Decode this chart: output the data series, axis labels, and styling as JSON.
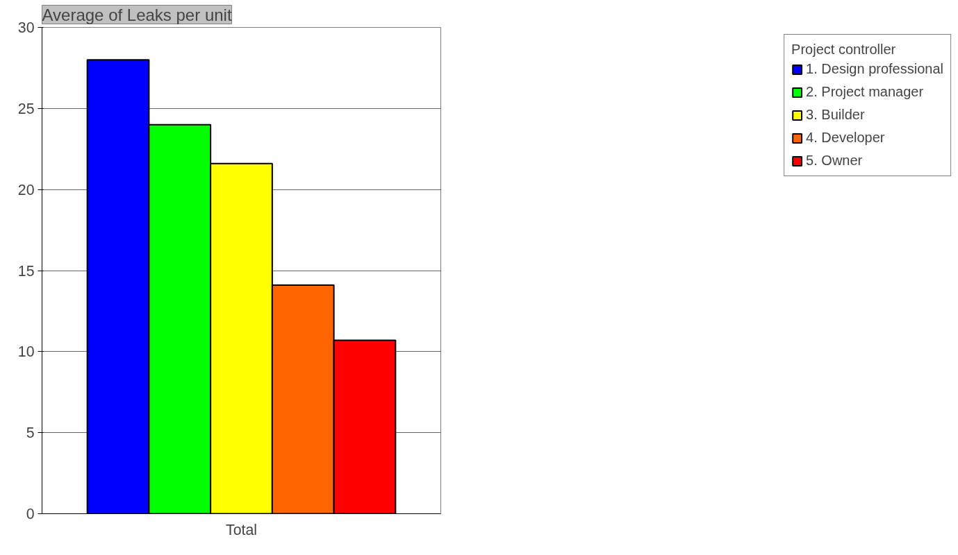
{
  "chart_data": {
    "type": "bar",
    "title": "Average of Leaks per unit",
    "categories": [
      "Total"
    ],
    "series": [
      {
        "name": "1. Design professional",
        "color": "#0000ff",
        "values": [
          28.0
        ]
      },
      {
        "name": "2. Project manager",
        "color": "#00ff00",
        "values": [
          24.0
        ]
      },
      {
        "name": "3. Builder",
        "color": "#ffff00",
        "values": [
          21.6
        ]
      },
      {
        "name": "4. Developer",
        "color": "#ff6600",
        "values": [
          14.1
        ]
      },
      {
        "name": "5. Owner",
        "color": "#ff0000",
        "values": [
          10.7
        ]
      }
    ],
    "ylim": [
      0,
      30
    ],
    "yticks": [
      0,
      5,
      10,
      15,
      20,
      25,
      30
    ],
    "grid": "y",
    "legend": "right",
    "legend_title": "Project controller"
  }
}
